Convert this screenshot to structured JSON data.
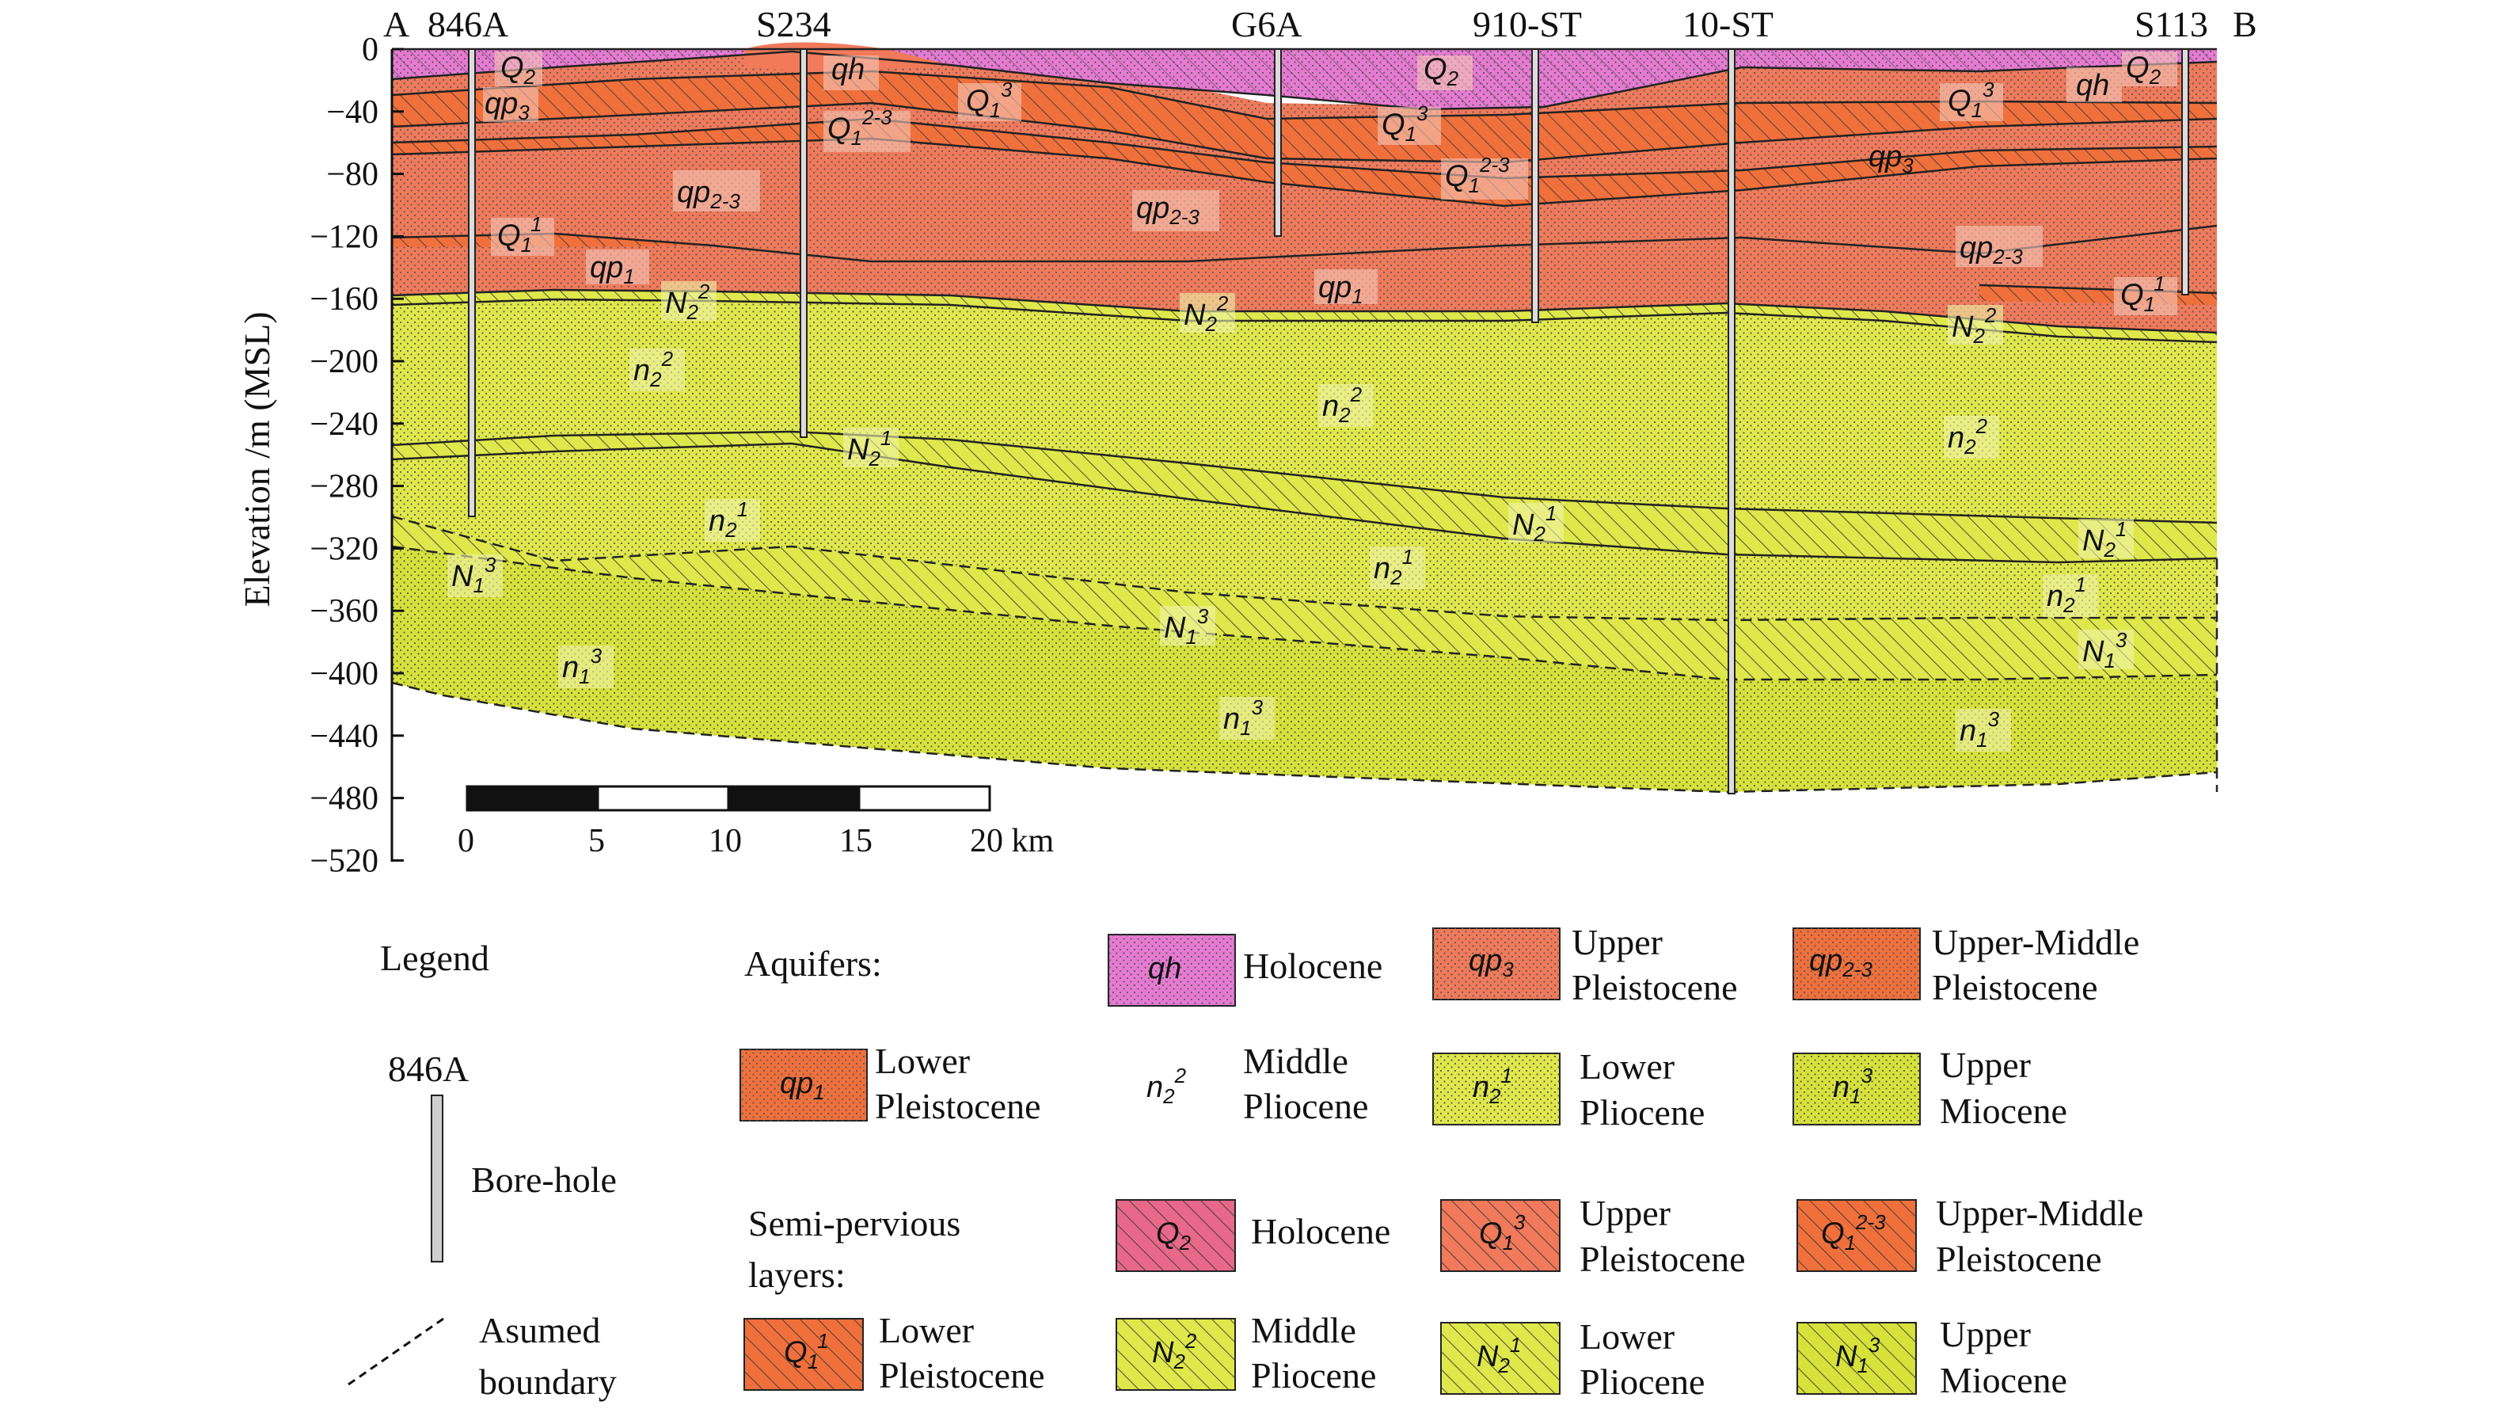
{
  "section": {
    "end_left": "A",
    "end_right": "B",
    "axis_label": "Elevation /m (MSL)",
    "y_ticks": [
      "0",
      "−40",
      "−80",
      "−120",
      "−160",
      "−200",
      "−240",
      "−280",
      "−320",
      "−360",
      "−400",
      "−440",
      "−480",
      "−520"
    ],
    "scale_ticks": [
      "0",
      "5",
      "10",
      "15",
      "20 km"
    ],
    "boreholes": [
      "846A",
      "S234",
      "G6A",
      "910-ST",
      "10-ST",
      "S113"
    ]
  },
  "labels": {
    "qh": "qh",
    "qp": "qp",
    "Q": "Q",
    "N": "N",
    "n": "n",
    "s1": "1",
    "s2": "2",
    "s3": "3",
    "s23": "2-3",
    "s2_3": "2-3"
  },
  "legend": {
    "title": "Legend",
    "borehole_id": "846A",
    "borehole_label": "Bore-hole",
    "assumed_line1": "Asumed",
    "assumed_line2": "boundary",
    "aquifers_title": "Aquifers:",
    "semi_line1": "Semi-pervious",
    "semi_line2": "layers:",
    "aq": {
      "holocene": "Holocene",
      "upper_pleist_1": "Upper",
      "upper_pleist_2": "Pleistocene",
      "um_pleist_1": "Upper-Middle",
      "um_pleist_2": "Pleistocene",
      "lower_pleist_1": "Lower",
      "lower_pleist_2": "Pleistocene",
      "mid_plio_1": "Middle",
      "mid_plio_2": "Pliocene",
      "lower_plio_1": "Lower",
      "lower_plio_2": "Pliocene",
      "upper_mio_1": "Upper",
      "upper_mio_2": "Miocene"
    },
    "semi": {
      "holocene": "Holocene",
      "upper_pleist_1": "Upper",
      "upper_pleist_2": "Pleistocene",
      "um_pleist_1": "Upper-Middle",
      "um_pleist_2": "Pleistocene",
      "lower_pleist_1": "Lower",
      "lower_pleist_2": "Pleistocene",
      "mid_plio_1": "Middle",
      "mid_plio_2": "Pliocene",
      "lower_plio_1": "Lower",
      "lower_plio_2": "Pliocene",
      "upper_mio_1": "Upper",
      "upper_mio_2": "Miocene"
    }
  },
  "colors": {
    "holocene": "#e67ad2",
    "pleistocene": "#f07a5a",
    "pleistocene_dark": "#f0703c",
    "pliocene": "#dfe84a",
    "miocene": "#d6e23a"
  }
}
